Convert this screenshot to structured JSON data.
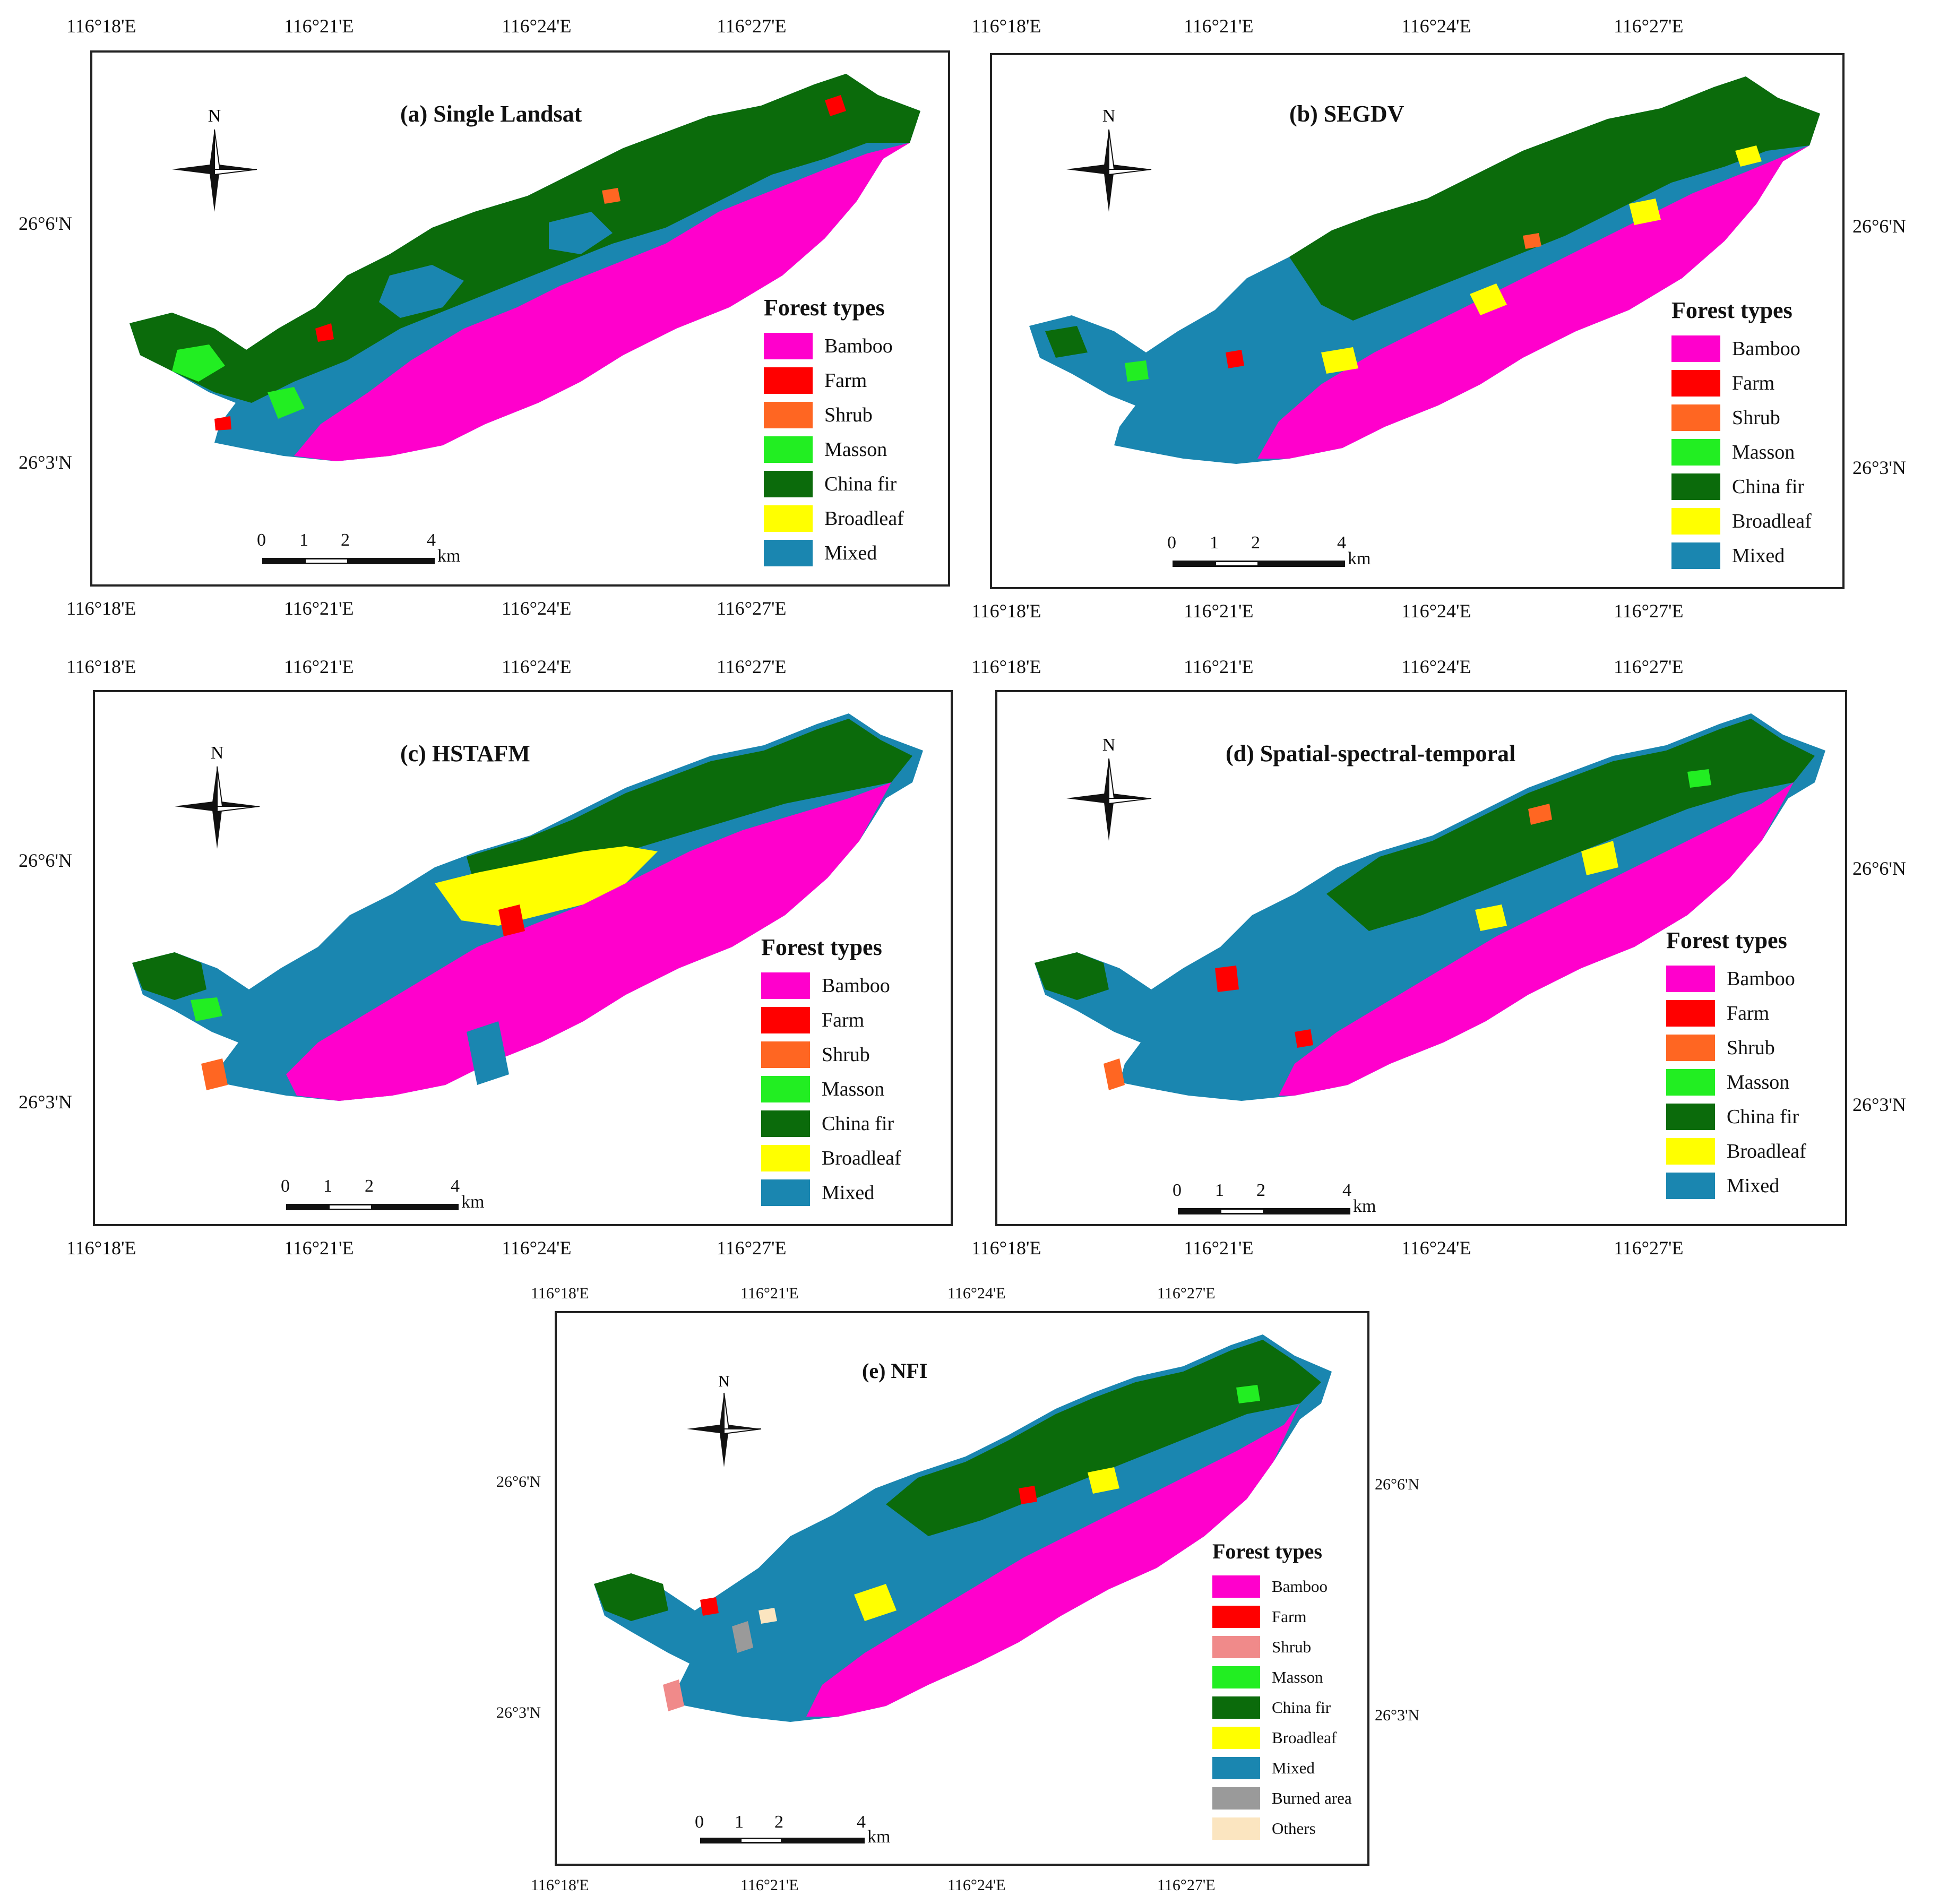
{
  "colors": {
    "Bamboo": "#ff00cc",
    "Farm": "#ff0000",
    "Shrub": "#ff6622",
    "ShrubNFI": "#f08a8a",
    "Masson": "#22ee22",
    "China fir": "#0b6b0b",
    "Broadleaf": "#ffff00",
    "Mixed": "#1a86b0",
    "Burned area": "#9a9a9a",
    "Others": "#fbe5c0"
  },
  "panels": [
    {
      "title": "(a)  Single Landsat",
      "lon_top": [
        "116°18'E",
        "116°21'E",
        "116°24'E",
        "116°27'E"
      ],
      "lon_bottom": [
        "116°18'E",
        "116°21'E",
        "116°24'E",
        "116°27'E"
      ],
      "lat_left": [
        "26°6'N",
        "26°3'N"
      ],
      "lat_right": [],
      "compass_label": "N",
      "scale": {
        "labels": [
          "0",
          "1",
          "2",
          "4"
        ],
        "unit": "km"
      },
      "legend": {
        "title": "Forest types",
        "items": [
          "Bamboo",
          "Farm",
          "Shrub",
          "Masson",
          "China fir",
          "Broadleaf",
          "Mixed"
        ]
      }
    },
    {
      "title": "(b)  SEGDV",
      "lon_top": [
        "116°18'E",
        "116°21'E",
        "116°24'E",
        "116°27'E"
      ],
      "lon_bottom": [
        "116°18'E",
        "116°21'E",
        "116°24'E",
        "116°27'E"
      ],
      "lat_left": [],
      "lat_right": [
        "26°6'N",
        "26°3'N"
      ],
      "compass_label": "N",
      "scale": {
        "labels": [
          "0",
          "1",
          "2",
          "4"
        ],
        "unit": "km"
      },
      "legend": {
        "title": "Forest types",
        "items": [
          "Bamboo",
          "Farm",
          "Shrub",
          "Masson",
          "China fir",
          "Broadleaf",
          "Mixed"
        ]
      }
    },
    {
      "title": "(c)  HSTAFM",
      "lon_top": [
        "116°18'E",
        "116°21'E",
        "116°24'E",
        "116°27'E"
      ],
      "lon_bottom": [
        "116°18'E",
        "116°21'E",
        "116°24'E",
        "116°27'E"
      ],
      "lat_left": [
        "26°6'N",
        "26°3'N"
      ],
      "lat_right": [],
      "compass_label": "N",
      "scale": {
        "labels": [
          "0",
          "1",
          "2",
          "4"
        ],
        "unit": "km"
      },
      "legend": {
        "title": "Forest types",
        "items": [
          "Bamboo",
          "Farm",
          "Shrub",
          "Masson",
          "China fir",
          "Broadleaf",
          "Mixed"
        ]
      }
    },
    {
      "title": "(d)  Spatial-spectral-temporal",
      "lon_top": [
        "116°18'E",
        "116°21'E",
        "116°24'E",
        "116°27'E"
      ],
      "lon_bottom": [
        "116°18'E",
        "116°21'E",
        "116°24'E",
        "116°27'E"
      ],
      "lat_left": [],
      "lat_right": [
        "26°6'N",
        "26°3'N"
      ],
      "compass_label": "N",
      "scale": {
        "labels": [
          "0",
          "1",
          "2",
          "4"
        ],
        "unit": "km"
      },
      "legend": {
        "title": "Forest types",
        "items": [
          "Bamboo",
          "Farm",
          "Shrub",
          "Masson",
          "China fir",
          "Broadleaf",
          "Mixed"
        ]
      }
    },
    {
      "title": "(e)  NFI",
      "lon_top": [
        "116°18'E",
        "116°21'E",
        "116°24'E",
        "116°27'E"
      ],
      "lon_bottom": [
        "116°18'E",
        "116°21'E",
        "116°24'E",
        "116°27'E"
      ],
      "lat_left": [
        "26°6'N",
        "26°3'N"
      ],
      "lat_right": [
        "26°6'N",
        "26°3'N"
      ],
      "compass_label": "N",
      "scale": {
        "labels": [
          "0",
          "1",
          "2",
          "4"
        ],
        "unit": "km"
      },
      "legend": {
        "title": "Forest types",
        "items": [
          "Bamboo",
          "Farm",
          "Shrub",
          "Masson",
          "China fir",
          "Broadleaf",
          "Mixed",
          "Burned area",
          "Others"
        ]
      }
    }
  ]
}
